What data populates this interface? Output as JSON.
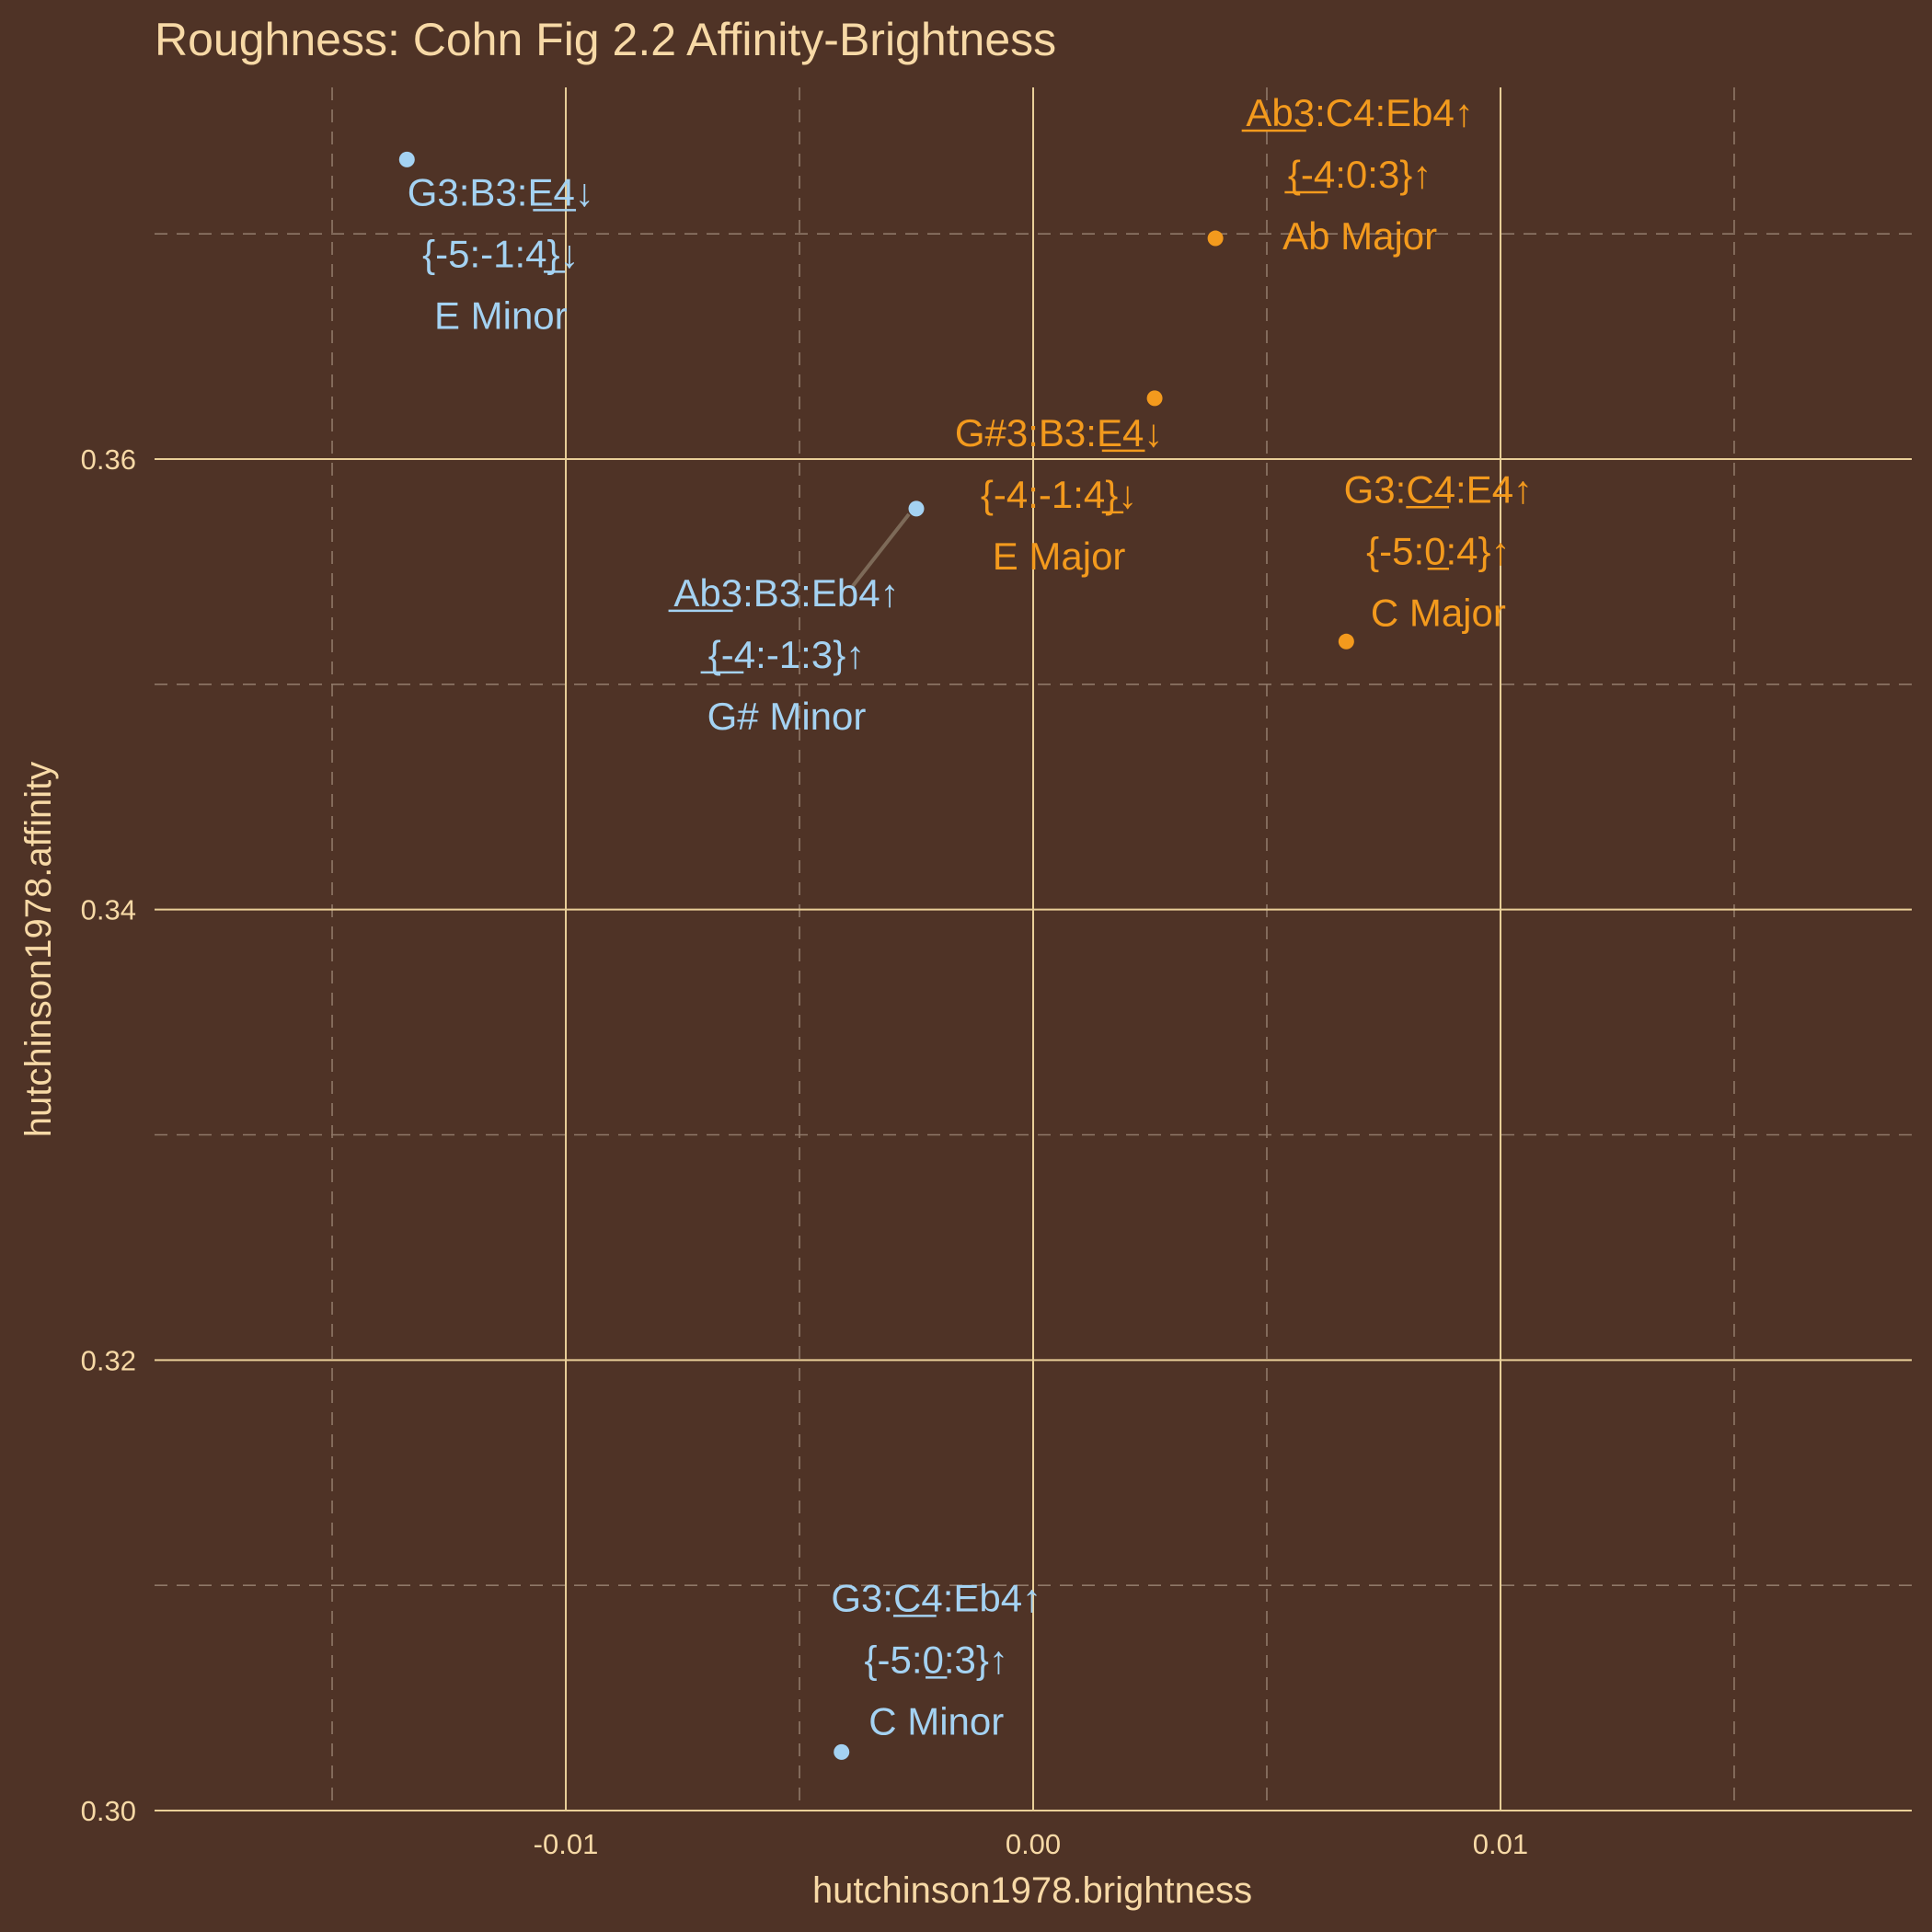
{
  "chart_data": {
    "type": "scatter",
    "title": "Roughness: Cohn Fig 2.2 Affinity-Brightness",
    "xlabel": "hutchinson1978.brightness",
    "ylabel": "hutchinson1978.affinity",
    "xlim": [
      -0.0188,
      0.0188
    ],
    "ylim": [
      0.3,
      0.3765
    ],
    "x_ticks": [
      -0.01,
      0.0,
      0.01
    ],
    "x_tick_labels": [
      "-0.01",
      "0.00",
      "0.01"
    ],
    "y_ticks": [
      0.3,
      0.32,
      0.34,
      0.36
    ],
    "y_tick_labels": [
      "0.30",
      "0.32",
      "0.34",
      "0.36"
    ],
    "grid": true,
    "legend": "none",
    "colors": {
      "minor": "#a4d2f2",
      "major": "#f39a1d"
    },
    "points": [
      {
        "x": -0.0134,
        "y": 0.3733,
        "group": "minor",
        "label_lines": [
          [
            {
              "t": "G3:B3:"
            },
            {
              "t": "E4",
              "u": true
            },
            {
              "t": "↓"
            }
          ],
          [
            {
              "t": "{-5:-1:"
            },
            {
              "t": "4",
              "u": true
            },
            {
              "t": "}↓"
            }
          ],
          [
            {
              "t": "E Minor"
            }
          ]
        ]
      },
      {
        "x": -0.0025,
        "y": 0.3578,
        "group": "minor",
        "label_lines": [
          [
            {
              "t": "Ab3",
              "u": true
            },
            {
              "t": ":B3:Eb4↑"
            }
          ],
          [
            {
              "t": "{"
            },
            {
              "t": "-4",
              "u": true
            },
            {
              "t": ":-1:3}↑"
            }
          ],
          [
            {
              "t": "G# Minor"
            }
          ]
        ]
      },
      {
        "x": -0.0041,
        "y": 0.3026,
        "group": "minor",
        "label_lines": [
          [
            {
              "t": "G3:"
            },
            {
              "t": "C4",
              "u": true
            },
            {
              "t": ":Eb4↑"
            }
          ],
          [
            {
              "t": "{-5:"
            },
            {
              "t": "0",
              "u": true
            },
            {
              "t": ":3}↑"
            }
          ],
          [
            {
              "t": "C Minor"
            }
          ]
        ]
      },
      {
        "x": 0.0039,
        "y": 0.3698,
        "group": "major",
        "label_lines": [
          [
            {
              "t": "Ab3",
              "u": true
            },
            {
              "t": ":C4:Eb4↑"
            }
          ],
          [
            {
              "t": "{"
            },
            {
              "t": "-4",
              "u": true
            },
            {
              "t": ":0:3}↑"
            }
          ],
          [
            {
              "t": "Ab Major"
            }
          ]
        ]
      },
      {
        "x": 0.0026,
        "y": 0.3627,
        "group": "major",
        "label_lines": [
          [
            {
              "t": "G#3:B3:"
            },
            {
              "t": "E4",
              "u": true
            },
            {
              "t": "↓"
            }
          ],
          [
            {
              "t": "{-4:-1:"
            },
            {
              "t": "4",
              "u": true
            },
            {
              "t": "}↓"
            }
          ],
          [
            {
              "t": "E Major"
            }
          ]
        ]
      },
      {
        "x": 0.0067,
        "y": 0.3519,
        "group": "major",
        "label_lines": [
          [
            {
              "t": "G3:"
            },
            {
              "t": "C4",
              "u": true
            },
            {
              "t": ":E4↑"
            }
          ],
          [
            {
              "t": "{-5:"
            },
            {
              "t": "0",
              "u": true
            },
            {
              "t": ":4}↑"
            }
          ],
          [
            {
              "t": "C Major"
            }
          ]
        ]
      }
    ]
  }
}
